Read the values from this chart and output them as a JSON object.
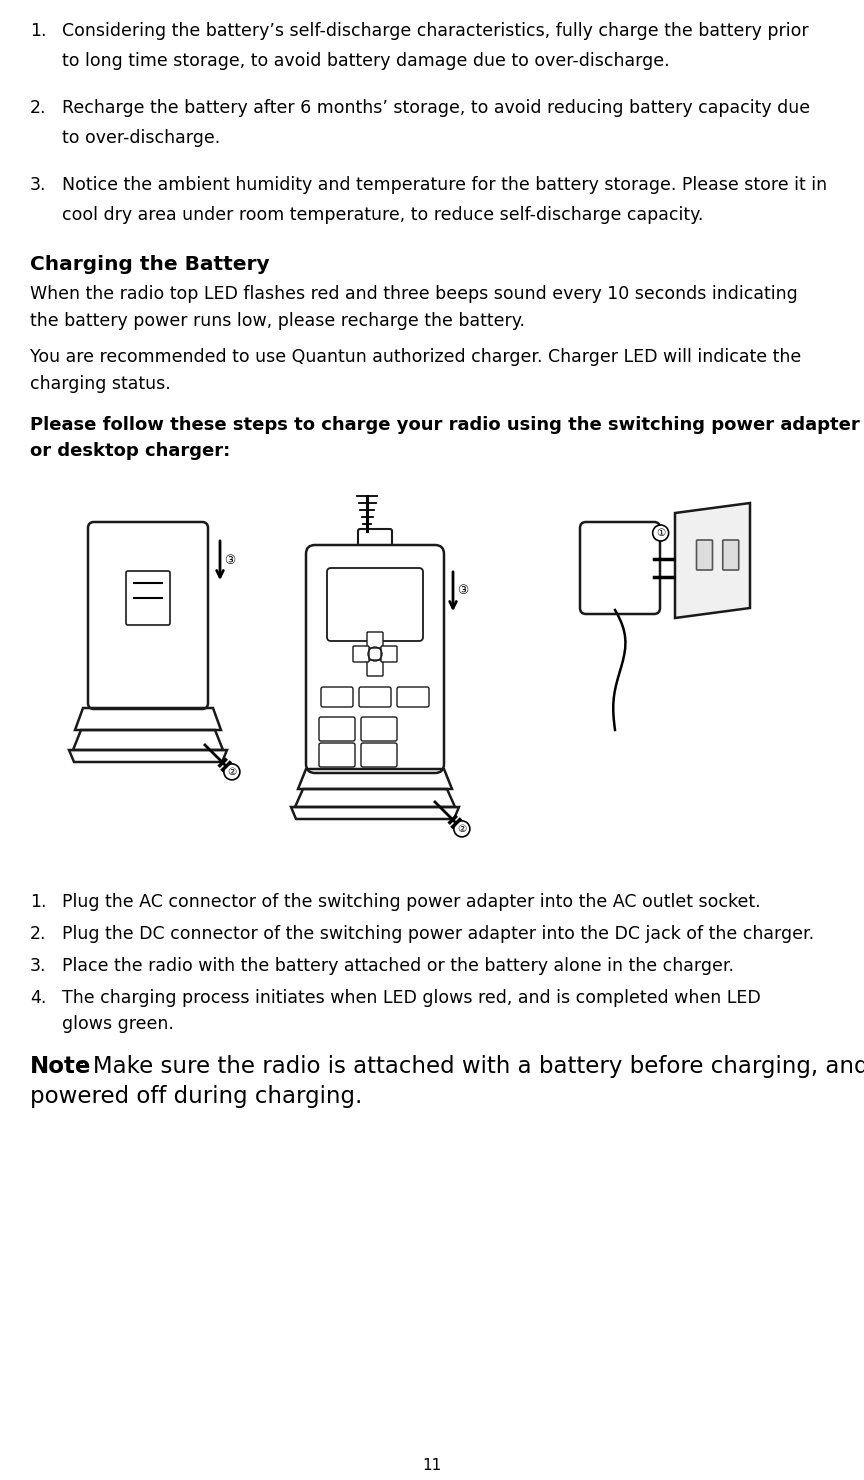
{
  "bg_color": "#ffffff",
  "text_color": "#000000",
  "page_number": "11",
  "font_size_body": 12.5,
  "font_size_section_title": 14.5,
  "font_size_bold_para": 13.0,
  "font_size_note": 16.5,
  "items_before": [
    {
      "num": "1.",
      "line1": "Considering the battery’s self-discharge characteristics, fully charge the battery prior",
      "line2": "to long time storage, to avoid battery damage due to over-discharge."
    },
    {
      "num": "2.",
      "line1": "Recharge the battery after 6 months’ storage, to avoid reducing battery capacity due",
      "line2": "to over-discharge."
    },
    {
      "num": "3.",
      "line1": "Notice the ambient humidity and temperature for the battery storage. Please store it in",
      "line2": "cool dry area under room temperature, to reduce self-discharge capacity."
    }
  ],
  "section_title": "Charging the Battery",
  "para1_line1": "When the radio top LED flashes red and three beeps sound every 10 seconds indicating",
  "para1_line2": "the battery power runs low, please recharge the battery.",
  "para2_line1": "You are recommended to use Quantun authorized charger. Charger LED will indicate the",
  "para2_line2": "charging status.",
  "bold_para_line1": "Please follow these steps to charge your radio using the switching power adapter",
  "bold_para_line2": "or desktop charger:",
  "steps": [
    {
      "num": "1.",
      "text": "Plug the AC connector of the switching power adapter into the AC outlet socket."
    },
    {
      "num": "2.",
      "text": "Plug the DC connector of the switching power adapter into the DC jack of the charger."
    },
    {
      "num": "3.",
      "text": "Place the radio with the battery attached or the battery alone in the charger."
    },
    {
      "num": "4.",
      "line1": "The charging process initiates when LED glows red, and is completed when LED",
      "line2": "glows green."
    }
  ],
  "note_bold": "Note",
  "note_line1": ": Make sure the radio is attached with a battery before charging, and is",
  "note_line2": "powered off during charging."
}
